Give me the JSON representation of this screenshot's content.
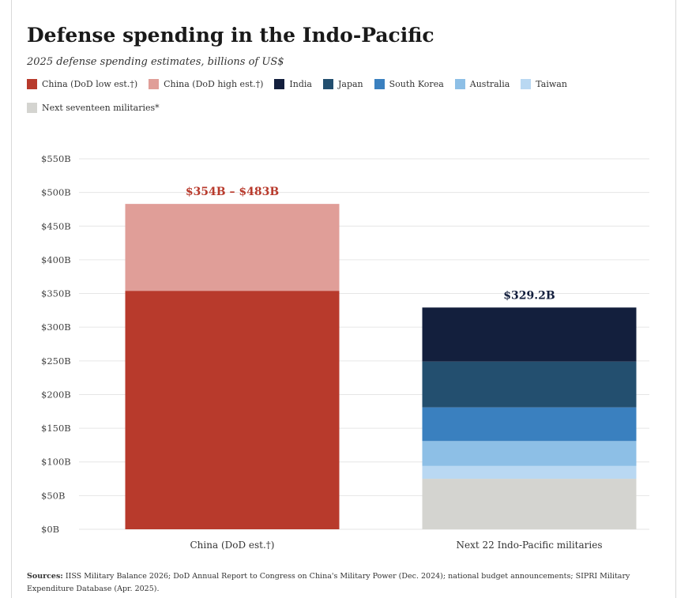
{
  "header": {
    "title": "Defense spending in the Indo-Pacific",
    "subtitle": "2025 defense spending estimates, billions of US$"
  },
  "legend": [
    {
      "label": "China (DoD low est.†)",
      "color": "#b83a2c"
    },
    {
      "label": "China (DoD high est.†)",
      "color": "#e09e98"
    },
    {
      "label": "India",
      "color": "#131f3d"
    },
    {
      "label": "Japan",
      "color": "#234f6f"
    },
    {
      "label": "South Korea",
      "color": "#3a80bf"
    },
    {
      "label": "Australia",
      "color": "#8dbfe6"
    },
    {
      "label": "Taiwan",
      "color": "#b9d8f2"
    },
    {
      "label": "Next seventeen militaries*",
      "color": "#d4d4d0"
    }
  ],
  "chart_data": {
    "type": "bar",
    "stacked": true,
    "categories": [
      "China (DoD est.†)",
      "Next 22 Indo-Pacific militaries"
    ],
    "series": [
      {
        "name": "China (DoD low est.†)",
        "color": "#b83a2c",
        "values": [
          354,
          0
        ]
      },
      {
        "name": "China (DoD high est.†)",
        "color": "#e09e98",
        "values": [
          129,
          0
        ]
      },
      {
        "name": "Next seventeen militaries*",
        "color": "#d4d4d0",
        "values": [
          0,
          75
        ]
      },
      {
        "name": "Taiwan",
        "color": "#b9d8f2",
        "values": [
          0,
          19
        ]
      },
      {
        "name": "Australia",
        "color": "#8dbfe6",
        "values": [
          0,
          37
        ]
      },
      {
        "name": "South Korea",
        "color": "#3a80bf",
        "values": [
          0,
          50
        ]
      },
      {
        "name": "Japan",
        "color": "#234f6f",
        "values": [
          0,
          68
        ]
      },
      {
        "name": "India",
        "color": "#131f3d",
        "values": [
          0,
          80.2
        ]
      }
    ],
    "bar_labels": [
      {
        "text": "$354B – $483B",
        "color": "#b83a2c"
      },
      {
        "text": "$329.2B",
        "color": "#131f3d"
      }
    ],
    "y_ticks": [
      0,
      50,
      100,
      150,
      200,
      250,
      300,
      350,
      400,
      450,
      500,
      550
    ],
    "y_tick_labels": [
      "$0B",
      "$50B",
      "$100B",
      "$150B",
      "$200B",
      "$250B",
      "$300B",
      "$350B",
      "$400B",
      "$450B",
      "$500B",
      "$550B"
    ],
    "ylim": [
      0,
      550
    ],
    "grid": true
  },
  "footer": {
    "sources_label": "Sources:",
    "sources_text": " IISS Military Balance 2026; DoD Annual Report to Congress on China's Military Power (Dec. 2024); national budget announcements; SIPRI Military Expenditure Database (Apr. 2025)."
  }
}
